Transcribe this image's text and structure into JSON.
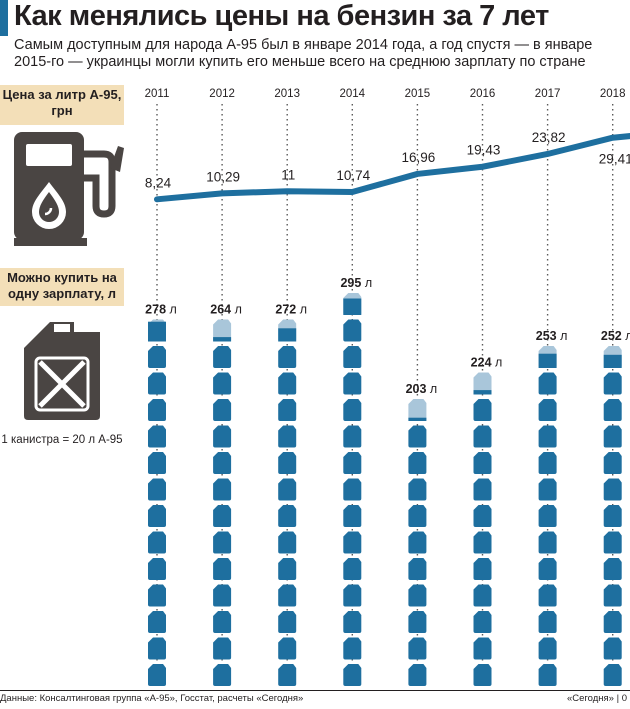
{
  "header": {
    "title": "Как менялись цены на бензин за 7 лет",
    "subtitle": "Самым доступным для народа А-95 был в январе 2014 года, а год спустя — в январе 2015-го — украинцы могли купить его меньше всего на среднюю зарплату по стране"
  },
  "legend": {
    "price_label": "Цена за литр А-95, грн",
    "liters_label": "Можно купить на одну зарплату, л",
    "canister_note": "1 канистра = 20 л А-95",
    "icons": [
      "fuel-pump-icon",
      "jerrycan-icon"
    ]
  },
  "footer": {
    "source": "Данные: Консалтинговая группа «А-95», Госстат, расчеты «Сегодня»",
    "credit": "«Сегодня» | 0"
  },
  "colors": {
    "accent": "#1e6f9f",
    "canister_full": "#1e6f9f",
    "canister_partial": "#a9c6da",
    "label_bg": "#f3dfb8",
    "icon_dark": "#4a4543"
  },
  "chart_data": {
    "type": "line",
    "title": "Как менялись цены на бензин за 7 лет",
    "categories": [
      "2011",
      "2012",
      "2013",
      "2014",
      "2015",
      "2016",
      "2017",
      "2018"
    ],
    "series": [
      {
        "name": "Цена за литр А-95, грн",
        "values": [
          8.24,
          10.29,
          11,
          10.74,
          16.96,
          19.43,
          23.82,
          29.41
        ],
        "labels": [
          "8,24",
          "10,29",
          "11",
          "10,74",
          "16,96",
          "19,43",
          "23,82",
          "29,41"
        ]
      },
      {
        "name": "Можно купить на одну зарплату, л",
        "values": [
          278,
          264,
          272,
          295,
          203,
          224,
          253,
          252
        ],
        "unit": "л",
        "liters_per_canister": 20
      }
    ]
  }
}
